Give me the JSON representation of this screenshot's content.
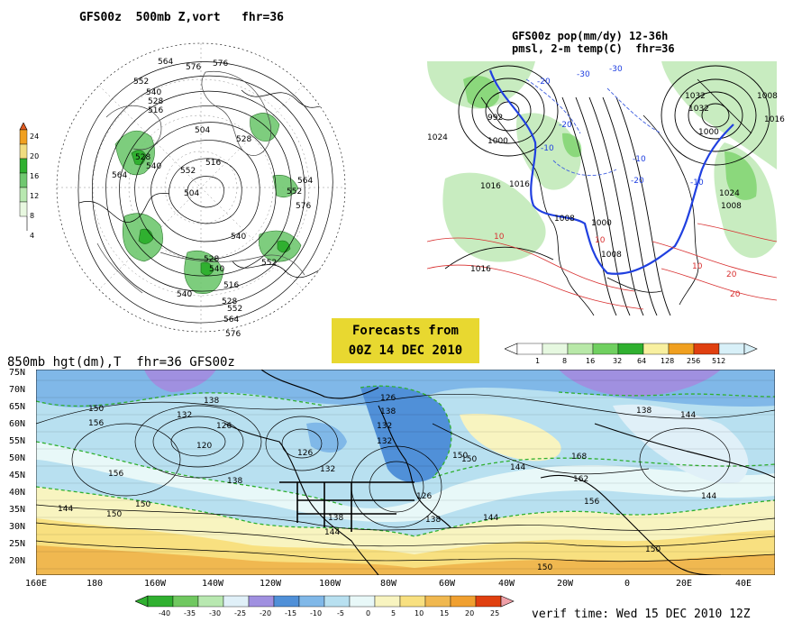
{
  "panel_500mb": {
    "title": "GFS00z  500mb Z,vort   fhr=36",
    "colorbar_labels": [
      "24",
      "20",
      "16",
      "12",
      "8",
      "4"
    ],
    "colorbar_colors": [
      "#e05a20",
      "#f0a020",
      "#f0dc80",
      "#30b030",
      "#70c870",
      "#b8e8b0",
      "#e8f8e0"
    ],
    "contour_labels": [
      "576",
      "564",
      "552",
      "540",
      "528",
      "516",
      "504",
      "528",
      "540",
      "552",
      "564",
      "576",
      "528",
      "516",
      "504",
      "552",
      "564",
      "576",
      "540",
      "552",
      "528",
      "540",
      "516",
      "528",
      "540",
      "552",
      "564",
      "576"
    ]
  },
  "panel_pop": {
    "title_line1": "GFS00z pop(mm/dy) 12-36h",
    "title_line2": "pmsl, 2-m temp(C)  fhr=36",
    "pressure_labels": [
      "992",
      "1000",
      "1008",
      "1016",
      "1024",
      "1032",
      "1016",
      "1008",
      "1000",
      "1008",
      "1016",
      "1008",
      "1000",
      "1032",
      "1024",
      "1016"
    ],
    "temp_labels": [
      "-30",
      "-20",
      "-10",
      "10",
      "20",
      "10",
      "-10",
      "-20",
      "-10",
      "-20",
      "-30",
      "20",
      "10"
    ],
    "colorbar_labels": [
      "1",
      "8",
      "16",
      "32",
      "64",
      "128",
      "256",
      "512"
    ],
    "colorbar_colors": [
      "#e6f8e0",
      "#b8e8a8",
      "#70d060",
      "#30b030",
      "#f8f0a0",
      "#f0a020",
      "#e04010",
      "#d8f0f8"
    ]
  },
  "forecast_box": {
    "line1": "Forecasts from",
    "line2": "00Z 14 DEC 2010"
  },
  "panel_850mb": {
    "title": "850mb hgt(dm),T  fhr=36 GFS00z",
    "lat_labels": [
      "75N",
      "70N",
      "65N",
      "60N",
      "55N",
      "50N",
      "45N",
      "40N",
      "35N",
      "30N",
      "25N",
      "20N"
    ],
    "lon_labels": [
      "160E",
      "180",
      "160W",
      "140W",
      "120W",
      "100W",
      "80W",
      "60W",
      "40W",
      "20W",
      "0",
      "20E",
      "40E"
    ],
    "height_labels": [
      "138",
      "132",
      "126",
      "120",
      "126",
      "132",
      "138",
      "144",
      "150",
      "156",
      "144",
      "150",
      "138",
      "132",
      "126",
      "150",
      "144",
      "138",
      "132",
      "126",
      "138",
      "144",
      "150",
      "156",
      "162",
      "168",
      "150",
      "156",
      "138",
      "144",
      "144",
      "150",
      "150"
    ],
    "colorbar_labels": [
      "-40",
      "-35",
      "-30",
      "-25",
      "-20",
      "-15",
      "-10",
      "-5",
      "0",
      "5",
      "10",
      "15",
      "20",
      "25"
    ],
    "colorbar_colors": [
      "#30b030",
      "#70c860",
      "#b8e8b0",
      "#e0f0f8",
      "#a090e0",
      "#5090d8",
      "#80b8e8",
      "#b8e0f0",
      "#e8f8f8",
      "#f8f4c0",
      "#f8e080",
      "#f0b850",
      "#f0a030",
      "#e04010",
      "#f0a0a8"
    ]
  },
  "verif_time": "verif time: Wed 15 DEC 2010 12Z"
}
